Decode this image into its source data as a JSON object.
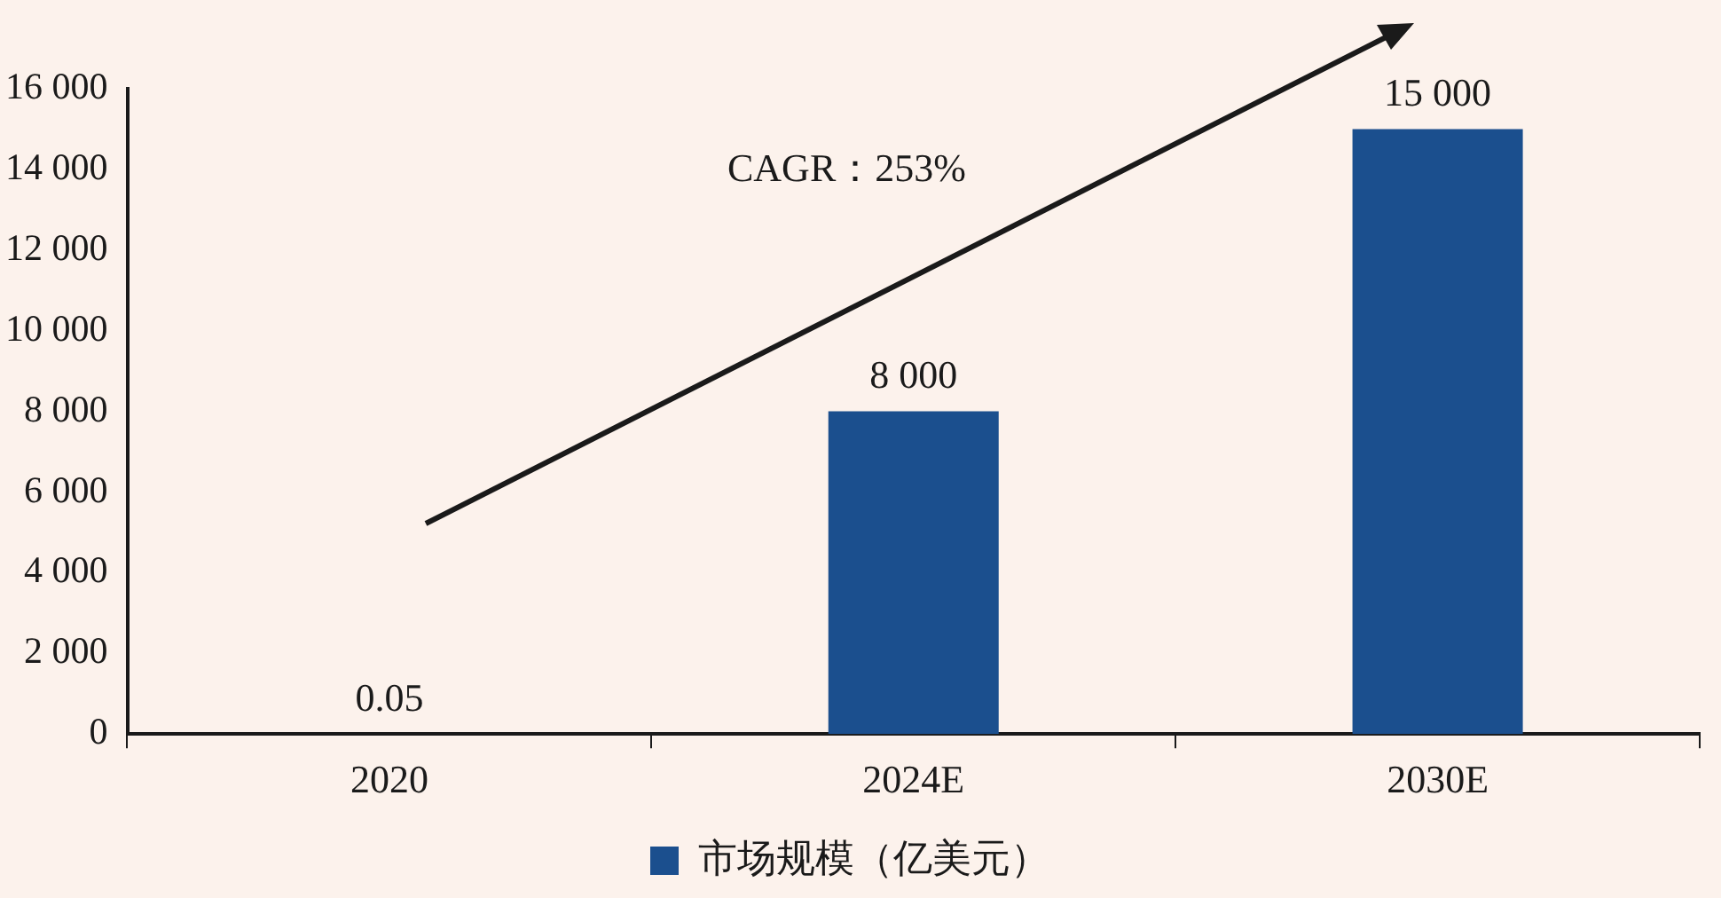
{
  "chart_data": {
    "type": "bar",
    "categories": [
      "2020",
      "2024E",
      "2030E"
    ],
    "series": [
      {
        "name": "市场规模（亿美元）",
        "color": "#1b4f8e",
        "values": [
          0.05,
          8000,
          15000
        ],
        "value_labels": [
          "0.05",
          "8 000",
          "15 000"
        ]
      }
    ],
    "ylim": [
      0,
      16000
    ],
    "yticks": [
      0,
      {
        "value": 2000,
        "label": "2 000"
      },
      {
        "value": 4000,
        "label": "4 000"
      },
      {
        "value": 6000,
        "label": "6 000"
      },
      {
        "value": 8000,
        "label": "8 000"
      },
      {
        "value": 10000,
        "label": "10 000"
      },
      {
        "value": 12000,
        "label": "12 000"
      },
      {
        "value": 14000,
        "label": "14 000"
      },
      {
        "value": 16000,
        "label": "16 000"
      }
    ],
    "annotations": [
      "CAGR：253%"
    ],
    "grid": false,
    "legend": "bottom"
  }
}
